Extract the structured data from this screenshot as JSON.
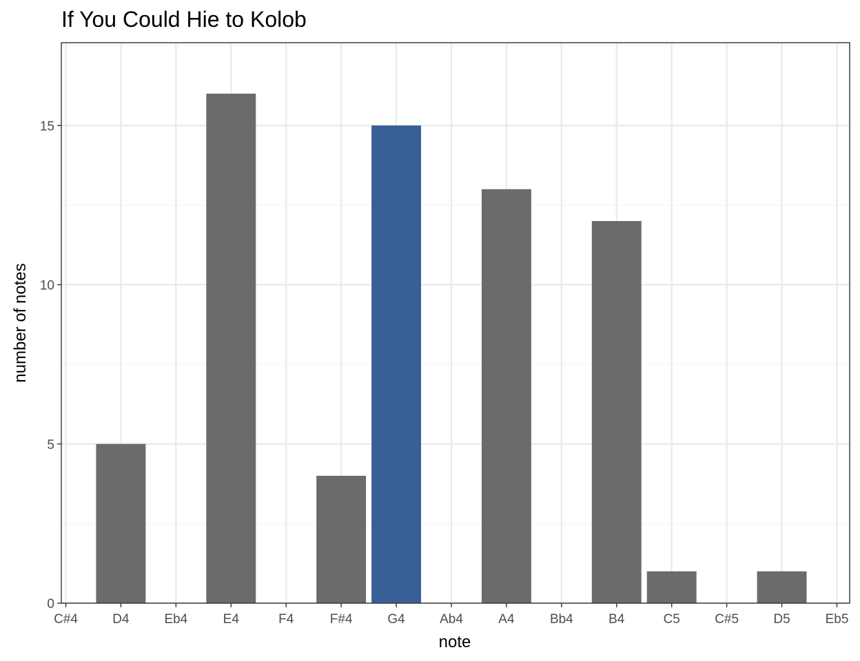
{
  "chart_data": {
    "type": "bar",
    "title": "If You Could Hie to Kolob",
    "xlabel": "note",
    "ylabel": "number of notes",
    "categories": [
      "C#4",
      "D4",
      "Eb4",
      "E4",
      "F4",
      "F#4",
      "G4",
      "Ab4",
      "A4",
      "Bb4",
      "B4",
      "C5",
      "C#5",
      "D5",
      "Eb5"
    ],
    "values": [
      0,
      5,
      0,
      16,
      0,
      4,
      15,
      0,
      13,
      0,
      12,
      1,
      0,
      1,
      0
    ],
    "highlight": "G4",
    "ylim": [
      0,
      17.6
    ],
    "yticks": [
      0,
      5,
      10,
      15
    ],
    "grid": true,
    "legend": "none",
    "colors": {
      "bar": "#6b6b6b",
      "highlight": "#386096",
      "grid_major": "#ebebeb",
      "grid_minor": "#f5f5f5",
      "panel_border": "#333333"
    }
  }
}
